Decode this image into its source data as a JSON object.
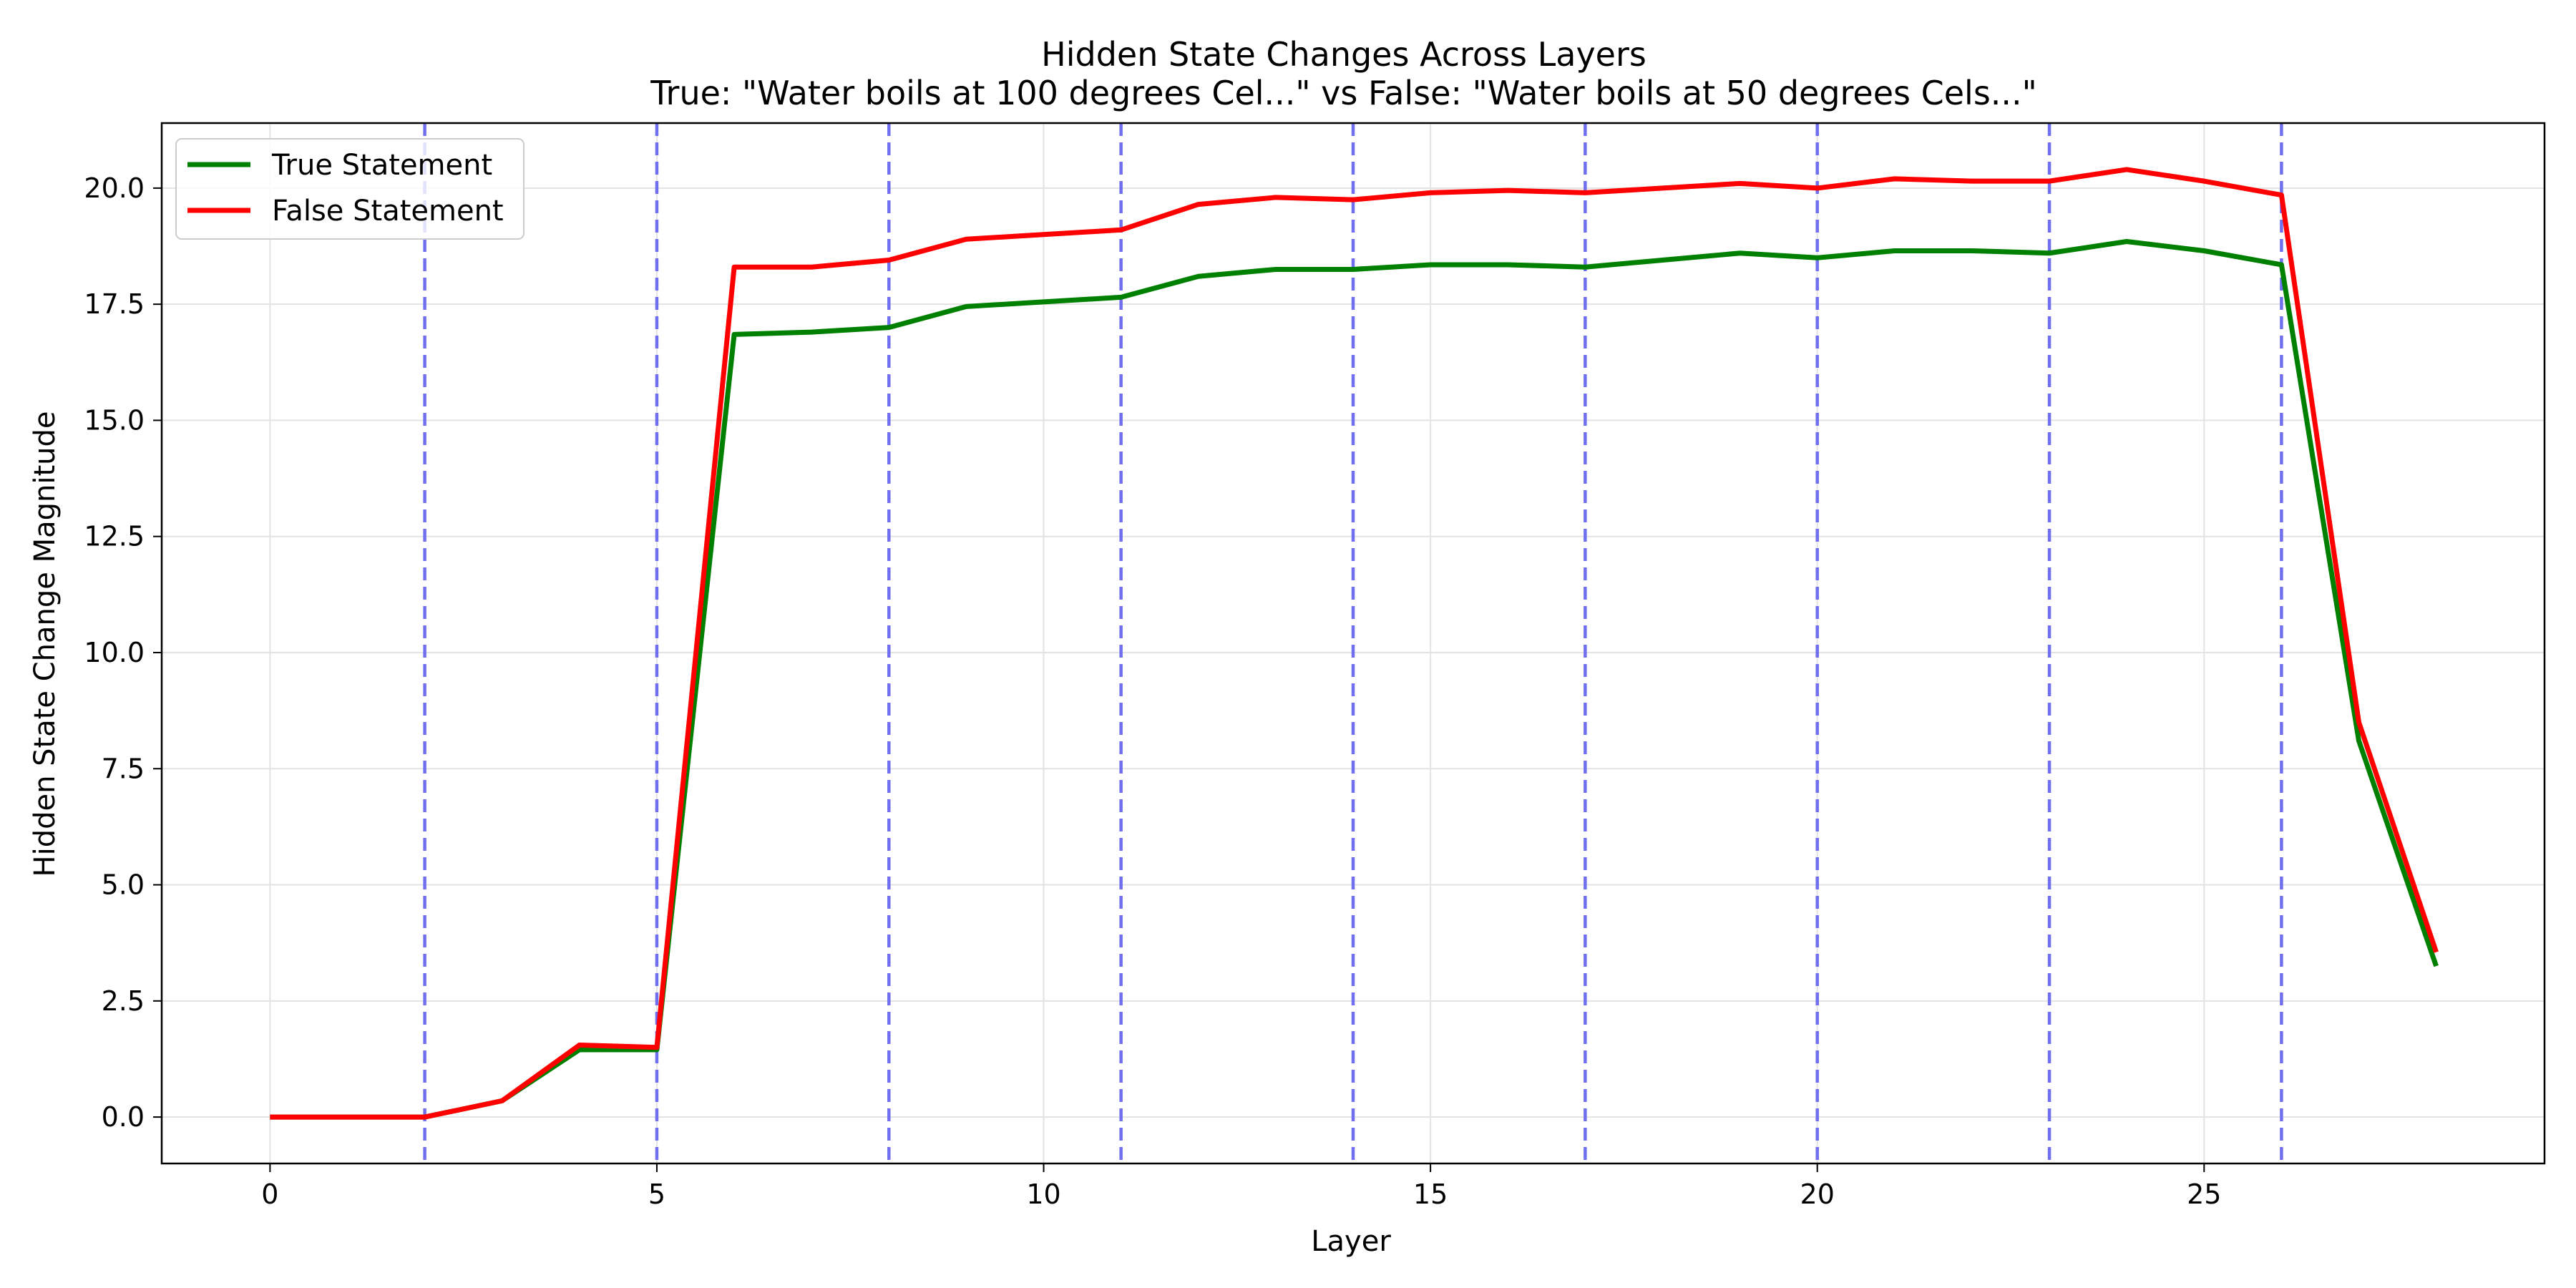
{
  "chart_data": {
    "type": "line",
    "title": "Hidden State Changes Across Layers",
    "subtitle": "True: \"Water boils at 100 degrees Cel...\" vs False: \"Water boils at 50 degrees Cels...\"",
    "xlabel": "Layer",
    "ylabel": "Hidden State Change Magnitude",
    "xlim": [
      -1.4,
      29.4
    ],
    "ylim": [
      -1.0,
      21.4
    ],
    "x_ticks": [
      0,
      5,
      10,
      15,
      20,
      25
    ],
    "y_ticks": [
      0.0,
      2.5,
      5.0,
      7.5,
      10.0,
      12.5,
      15.0,
      17.5,
      20.0
    ],
    "x_tick_labels": [
      "0",
      "5",
      "10",
      "15",
      "20",
      "25"
    ],
    "y_tick_labels": [
      "0.0",
      "2.5",
      "5.0",
      "7.5",
      "10.0",
      "12.5",
      "15.0",
      "17.5",
      "20.0"
    ],
    "grid": true,
    "legend_position": "upper-left",
    "vertical_markers": [
      2,
      5,
      8,
      11,
      14,
      17,
      20,
      23,
      26
    ],
    "vertical_marker_color": "#6f6fef",
    "x": [
      0,
      1,
      2,
      3,
      4,
      5,
      6,
      7,
      8,
      9,
      10,
      11,
      12,
      13,
      14,
      15,
      16,
      17,
      18,
      19,
      20,
      21,
      22,
      23,
      24,
      25,
      26,
      27,
      28
    ],
    "series": [
      {
        "name": "True Statement",
        "color": "#008000",
        "values": [
          0.0,
          0.0,
          0.0,
          0.35,
          1.45,
          1.45,
          16.85,
          16.9,
          17.0,
          17.45,
          17.55,
          17.65,
          18.1,
          18.25,
          18.25,
          18.35,
          18.35,
          18.3,
          18.45,
          18.6,
          18.5,
          18.65,
          18.65,
          18.6,
          18.85,
          18.65,
          18.35,
          8.1,
          3.25
        ]
      },
      {
        "name": "False Statement",
        "color": "#ff0000",
        "values": [
          0.0,
          0.0,
          0.0,
          0.35,
          1.55,
          1.5,
          18.3,
          18.3,
          18.45,
          18.9,
          19.0,
          19.1,
          19.65,
          19.8,
          19.75,
          19.9,
          19.95,
          19.9,
          20.0,
          20.1,
          20.0,
          20.2,
          20.15,
          20.15,
          20.4,
          20.15,
          19.85,
          8.5,
          3.55
        ]
      }
    ]
  }
}
